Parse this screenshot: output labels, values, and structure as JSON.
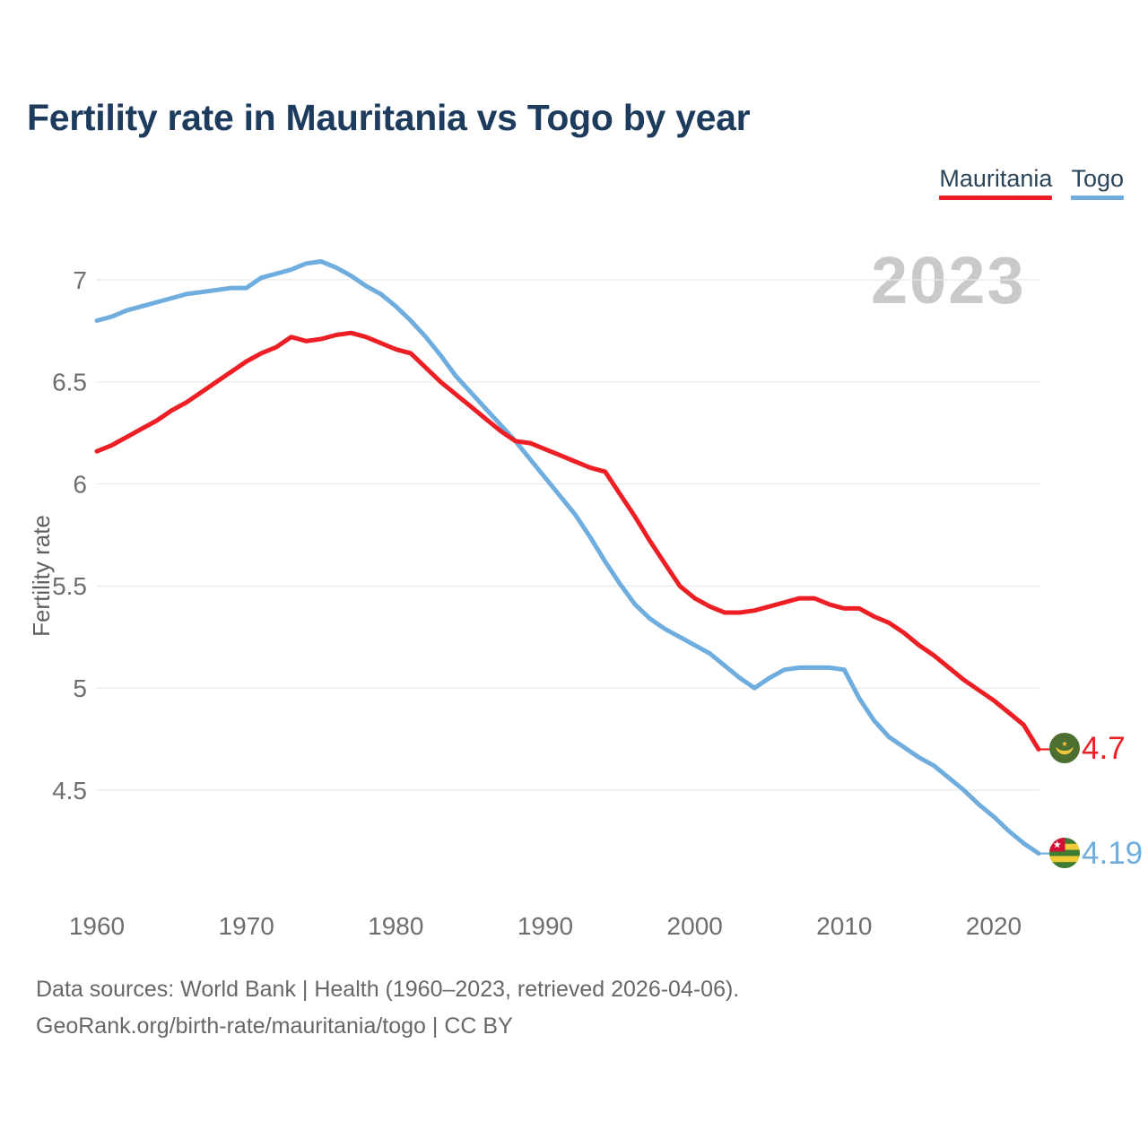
{
  "header": {
    "title": "Fertility rate in Mauritania vs Togo by year"
  },
  "legend": {
    "items": [
      {
        "label": "Mauritania",
        "color": "#ed1f24"
      },
      {
        "label": "Togo",
        "color": "#6fadde"
      }
    ]
  },
  "chart_data": {
    "type": "line",
    "title": "Fertility rate in Mauritania vs Togo by year",
    "xlabel": "",
    "ylabel": "Fertility rate",
    "watermark": "2023",
    "grid": "horizontal",
    "legend_position": "top-right",
    "xlim": [
      1960,
      2023
    ],
    "ylim": [
      4.05,
      7.15
    ],
    "x_ticks": [
      1960,
      1970,
      1980,
      1990,
      2000,
      2010,
      2020
    ],
    "x_tick_labels": [
      "1960",
      "1970",
      "1980",
      "1990",
      "2000",
      "2010",
      "2020"
    ],
    "y_ticks": [
      7,
      6.5,
      6,
      5.5,
      5,
      4.5
    ],
    "y_tick_labels": [
      "7",
      "6.5",
      "6",
      "5.5",
      "5",
      "4.5"
    ],
    "x": [
      1960,
      1961,
      1962,
      1963,
      1964,
      1965,
      1966,
      1967,
      1968,
      1969,
      1970,
      1971,
      1972,
      1973,
      1974,
      1975,
      1976,
      1977,
      1978,
      1979,
      1980,
      1981,
      1982,
      1983,
      1984,
      1985,
      1986,
      1987,
      1988,
      1989,
      1990,
      1991,
      1992,
      1993,
      1994,
      1995,
      1996,
      1997,
      1998,
      1999,
      2000,
      2001,
      2002,
      2003,
      2004,
      2005,
      2006,
      2007,
      2008,
      2009,
      2010,
      2011,
      2012,
      2013,
      2014,
      2015,
      2016,
      2017,
      2018,
      2019,
      2020,
      2021,
      2022,
      2023
    ],
    "series": [
      {
        "name": "Mauritania",
        "color": "#ed1f24",
        "end_label": "4.7",
        "flag_icon": "mauritania-flag-icon",
        "values": [
          6.16,
          6.19,
          6.23,
          6.27,
          6.31,
          6.36,
          6.4,
          6.45,
          6.5,
          6.55,
          6.6,
          6.64,
          6.67,
          6.72,
          6.7,
          6.71,
          6.73,
          6.74,
          6.72,
          6.69,
          6.66,
          6.64,
          6.57,
          6.5,
          6.44,
          6.38,
          6.32,
          6.26,
          6.21,
          6.2,
          6.17,
          6.14,
          6.11,
          6.08,
          6.06,
          5.95,
          5.84,
          5.72,
          5.61,
          5.5,
          5.44,
          5.4,
          5.37,
          5.37,
          5.38,
          5.4,
          5.42,
          5.44,
          5.44,
          5.41,
          5.39,
          5.39,
          5.35,
          5.32,
          5.27,
          5.21,
          5.16,
          5.1,
          5.04,
          4.99,
          4.94,
          4.88,
          4.82,
          4.7
        ]
      },
      {
        "name": "Togo",
        "color": "#6fadde",
        "end_label": "4.19",
        "flag_icon": "togo-flag-icon",
        "values": [
          6.8,
          6.82,
          6.85,
          6.87,
          6.89,
          6.91,
          6.93,
          6.94,
          6.95,
          6.96,
          6.96,
          7.01,
          7.03,
          7.05,
          7.08,
          7.09,
          7.06,
          7.02,
          6.97,
          6.93,
          6.87,
          6.8,
          6.72,
          6.63,
          6.53,
          6.45,
          6.37,
          6.29,
          6.21,
          6.12,
          6.03,
          5.94,
          5.85,
          5.74,
          5.62,
          5.51,
          5.41,
          5.34,
          5.29,
          5.25,
          5.21,
          5.17,
          5.11,
          5.05,
          5.0,
          5.05,
          5.09,
          5.1,
          5.1,
          5.1,
          5.09,
          4.95,
          4.84,
          4.76,
          4.71,
          4.66,
          4.62,
          4.56,
          4.5,
          4.43,
          4.37,
          4.3,
          4.24,
          4.19
        ]
      }
    ]
  },
  "footer": {
    "line1": "Data sources: World Bank | Health (1960–2023, retrieved 2026-04-06).",
    "line2": "GeoRank.org/birth-rate/mauritania/togo | CC BY"
  }
}
